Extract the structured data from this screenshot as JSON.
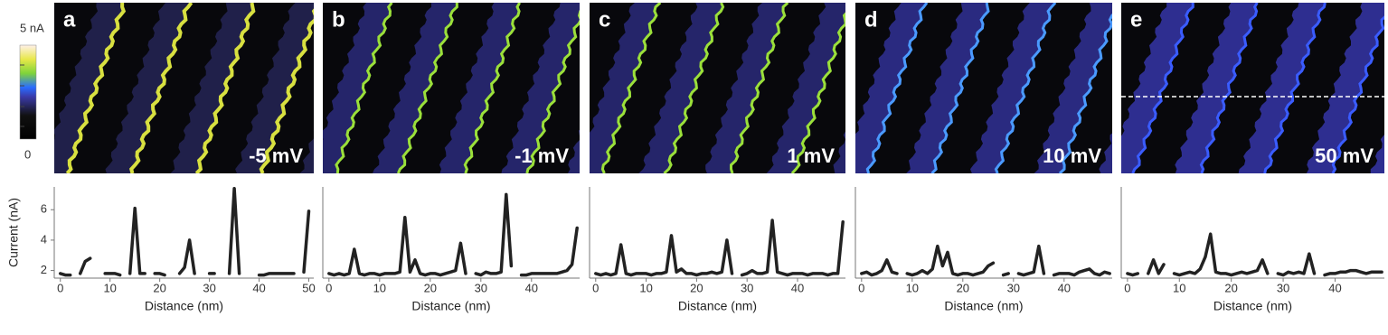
{
  "colorbar": {
    "max_label": "5 nA",
    "min_label": "0"
  },
  "chart_data": [
    {
      "type": "line",
      "panel": "a",
      "bias": "-5 mV",
      "color": "#222222",
      "x": [
        0,
        1,
        2,
        3,
        4,
        5,
        6,
        7,
        8,
        9,
        10,
        11,
        12,
        13,
        14,
        15,
        16,
        17,
        18,
        19,
        20,
        21,
        22,
        23,
        24,
        25,
        26,
        27,
        28,
        29,
        30,
        31,
        32,
        33,
        34,
        35,
        36,
        37,
        38,
        39,
        40,
        41,
        42,
        43,
        44,
        45,
        46,
        47,
        48,
        49,
        50
      ],
      "values": [
        1.8,
        1.7,
        1.7,
        null,
        1.8,
        2.6,
        2.8,
        null,
        null,
        1.8,
        1.8,
        1.8,
        1.7,
        null,
        1.8,
        6.1,
        1.8,
        1.8,
        null,
        1.8,
        1.8,
        1.7,
        null,
        null,
        1.8,
        2.2,
        4.0,
        1.8,
        null,
        null,
        1.8,
        1.8,
        null,
        null,
        1.8,
        7.4,
        1.8,
        null,
        null,
        null,
        1.7,
        1.7,
        1.8,
        1.8,
        1.8,
        1.8,
        1.8,
        1.8,
        null,
        1.9,
        5.9
      ],
      "xlim": [
        -0.5,
        51
      ],
      "xticks": [
        0,
        10,
        20,
        30,
        40,
        50
      ],
      "ylim": [
        1.5,
        7.5
      ],
      "yticks": [
        2,
        4,
        6
      ],
      "x_label": "Distance (nm)",
      "y_label": "Current (nA)"
    },
    {
      "type": "line",
      "panel": "b",
      "bias": "-1 mV",
      "color": "#222222",
      "x": [
        0,
        1,
        2,
        3,
        4,
        5,
        6,
        7,
        8,
        9,
        10,
        11,
        12,
        13,
        14,
        15,
        16,
        17,
        18,
        19,
        20,
        21,
        22,
        23,
        24,
        25,
        26,
        27,
        28,
        29,
        30,
        31,
        32,
        33,
        34,
        35,
        36,
        37,
        38,
        39,
        40,
        41,
        42,
        43,
        44,
        45,
        46,
        47,
        48,
        49
      ],
      "values": [
        1.8,
        1.7,
        1.8,
        1.7,
        1.8,
        3.4,
        1.8,
        1.7,
        1.8,
        1.8,
        1.7,
        1.8,
        1.8,
        1.8,
        1.9,
        5.5,
        1.9,
        2.7,
        1.8,
        1.7,
        1.8,
        1.8,
        1.7,
        1.8,
        1.9,
        2.0,
        3.8,
        1.8,
        null,
        1.8,
        1.7,
        1.9,
        1.8,
        1.8,
        1.9,
        7.0,
        2.3,
        null,
        1.7,
        1.7,
        1.8,
        1.8,
        1.8,
        1.8,
        1.8,
        1.8,
        1.9,
        2.0,
        2.4,
        4.8
      ],
      "xlim": [
        -0.5,
        49.5
      ],
      "xticks": [
        0,
        10,
        20,
        30,
        40
      ],
      "ylim": [
        1.5,
        7.5
      ],
      "x_label": "Distance (nm)"
    },
    {
      "type": "line",
      "panel": "c",
      "bias": "1 mV",
      "color": "#222222",
      "x": [
        0,
        1,
        2,
        3,
        4,
        5,
        6,
        7,
        8,
        9,
        10,
        11,
        12,
        13,
        14,
        15,
        16,
        17,
        18,
        19,
        20,
        21,
        22,
        23,
        24,
        25,
        26,
        27,
        28,
        29,
        30,
        31,
        32,
        33,
        34,
        35,
        36,
        37,
        38,
        39,
        40,
        41,
        42,
        43,
        44,
        45,
        46,
        47,
        48,
        49
      ],
      "values": [
        1.8,
        1.7,
        1.8,
        1.7,
        1.8,
        3.7,
        1.8,
        1.7,
        1.8,
        1.8,
        1.8,
        1.7,
        1.8,
        1.8,
        1.9,
        4.3,
        1.9,
        2.1,
        1.8,
        1.8,
        1.7,
        1.8,
        1.8,
        1.9,
        1.8,
        1.9,
        4.0,
        1.8,
        null,
        1.7,
        1.8,
        2.0,
        1.8,
        1.8,
        1.9,
        5.3,
        1.9,
        1.8,
        1.7,
        1.8,
        1.8,
        1.8,
        1.7,
        1.8,
        1.8,
        1.8,
        1.7,
        1.8,
        1.8,
        5.2
      ],
      "xlim": [
        -0.5,
        49.5
      ],
      "xticks": [
        0,
        10,
        20,
        30,
        40
      ],
      "ylim": [
        1.5,
        7.5
      ],
      "x_label": "Distance (nm)"
    },
    {
      "type": "line",
      "panel": "d",
      "bias": "10 mV",
      "color": "#222222",
      "x": [
        0,
        1,
        2,
        3,
        4,
        5,
        6,
        7,
        8,
        9,
        10,
        11,
        12,
        13,
        14,
        15,
        16,
        17,
        18,
        19,
        20,
        21,
        22,
        23,
        24,
        25,
        26,
        27,
        28,
        29,
        30,
        31,
        32,
        33,
        34,
        35,
        36,
        37,
        38,
        39,
        40,
        41,
        42,
        43,
        44,
        45,
        46,
        47,
        48,
        49
      ],
      "values": [
        1.8,
        1.9,
        1.7,
        1.8,
        2.0,
        2.7,
        1.9,
        1.8,
        null,
        1.8,
        1.7,
        1.8,
        2.0,
        1.8,
        2.1,
        3.6,
        2.3,
        3.2,
        1.8,
        1.7,
        1.8,
        1.8,
        1.7,
        1.8,
        1.9,
        2.3,
        2.5,
        null,
        1.7,
        1.8,
        null,
        1.8,
        1.7,
        1.8,
        1.9,
        3.6,
        1.8,
        null,
        1.7,
        1.8,
        1.8,
        1.8,
        1.7,
        1.9,
        2.0,
        2.1,
        1.8,
        1.7,
        1.9,
        1.8
      ],
      "xlim": [
        -0.5,
        49.5
      ],
      "xticks": [
        0,
        10,
        20,
        30,
        40
      ],
      "ylim": [
        1.5,
        7.5
      ],
      "x_label": "Distance (nm)"
    },
    {
      "type": "line",
      "panel": "e",
      "bias": "50 mV",
      "color": "#222222",
      "x": [
        0,
        1,
        2,
        3,
        4,
        5,
        6,
        7,
        8,
        9,
        10,
        11,
        12,
        13,
        14,
        15,
        16,
        17,
        18,
        19,
        20,
        21,
        22,
        23,
        24,
        25,
        26,
        27,
        28,
        29,
        30,
        31,
        32,
        33,
        34,
        35,
        36,
        37,
        38,
        39,
        40,
        41,
        42,
        43,
        44,
        45,
        46,
        47,
        48,
        49
      ],
      "values": [
        1.8,
        1.7,
        1.8,
        null,
        1.8,
        2.7,
        1.8,
        2.4,
        null,
        1.8,
        1.7,
        1.8,
        1.9,
        1.8,
        2.1,
        2.9,
        4.4,
        1.9,
        1.8,
        1.8,
        1.7,
        1.8,
        1.9,
        1.8,
        1.9,
        2.0,
        2.7,
        1.8,
        null,
        1.8,
        1.7,
        1.9,
        1.8,
        1.9,
        1.8,
        3.1,
        1.8,
        null,
        1.7,
        1.8,
        1.8,
        1.9,
        1.9,
        2.0,
        2.0,
        1.9,
        1.8,
        1.9,
        1.9,
        1.9
      ],
      "xlim": [
        -0.5,
        49.5
      ],
      "xticks": [
        0,
        10,
        20,
        30,
        40
      ],
      "ylim": [
        1.5,
        7.5
      ],
      "x_label": "Distance (nm)"
    }
  ]
}
